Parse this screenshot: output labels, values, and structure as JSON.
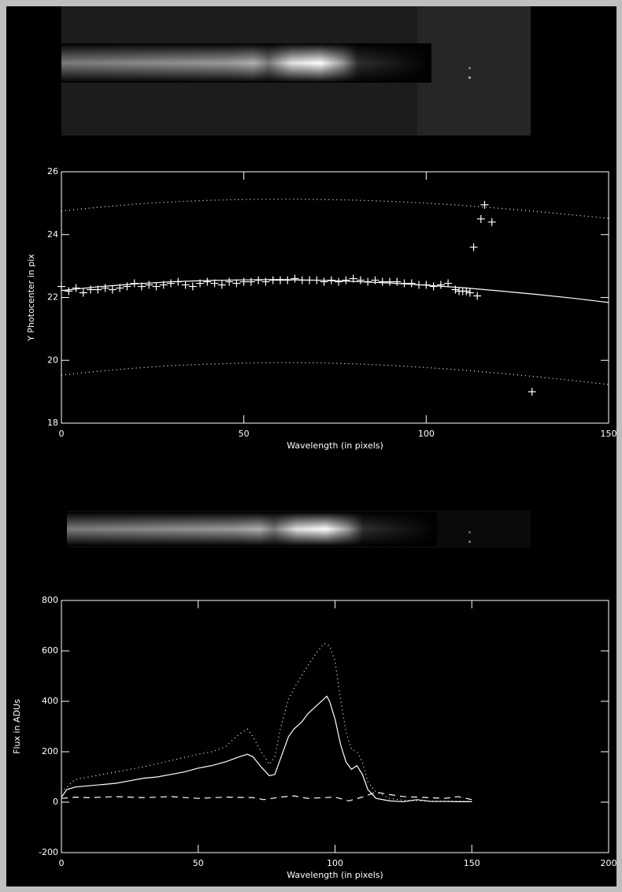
{
  "chart_data": [
    {
      "type": "scatter",
      "ylabel": "Y Photocenter in pix",
      "xlabel": "Wavelength (in pixels)",
      "xlim": [
        0,
        150
      ],
      "ylim": [
        18,
        26
      ],
      "xticks": [
        0,
        50,
        100,
        150
      ],
      "yticks": [
        18,
        20,
        22,
        24,
        26
      ],
      "series": [
        {
          "style": "plus",
          "color": "#ffffff",
          "x": [
            0,
            2,
            4,
            6,
            8,
            10,
            12,
            14,
            16,
            18,
            20,
            22,
            24,
            26,
            28,
            30,
            32,
            34,
            36,
            38,
            40,
            42,
            44,
            46,
            48,
            50,
            52,
            54,
            56,
            58,
            60,
            62,
            64,
            66,
            68,
            70,
            72,
            74,
            76,
            78,
            80,
            82,
            84,
            86,
            88,
            90,
            92,
            94,
            96,
            98,
            100,
            102,
            104,
            106,
            108,
            109,
            110,
            111,
            112,
            113,
            114,
            115,
            116,
            118,
            129
          ],
          "values": [
            22.35,
            22.2,
            22.3,
            22.15,
            22.25,
            22.25,
            22.3,
            22.25,
            22.3,
            22.35,
            22.45,
            22.35,
            22.4,
            22.35,
            22.4,
            22.45,
            22.5,
            22.4,
            22.35,
            22.45,
            22.5,
            22.45,
            22.4,
            22.5,
            22.45,
            22.5,
            22.5,
            22.55,
            22.5,
            22.55,
            22.55,
            22.55,
            22.6,
            22.55,
            22.55,
            22.55,
            22.5,
            22.55,
            22.5,
            22.55,
            22.6,
            22.55,
            22.5,
            22.55,
            22.5,
            22.5,
            22.5,
            22.45,
            22.45,
            22.4,
            22.4,
            22.35,
            22.4,
            22.45,
            22.25,
            22.2,
            22.2,
            22.2,
            22.15,
            23.6,
            22.05,
            24.5,
            24.95,
            24.4,
            19.0
          ]
        },
        {
          "style": "solid",
          "color": "#ffffff",
          "x": [
            0,
            10,
            20,
            30,
            40,
            50,
            60,
            70,
            80,
            90,
            100,
            110,
            120,
            130,
            140,
            150
          ],
          "values": [
            22.22,
            22.34,
            22.43,
            22.5,
            22.54,
            22.56,
            22.57,
            22.55,
            22.51,
            22.46,
            22.39,
            22.31,
            22.21,
            22.1,
            21.98,
            21.84
          ]
        },
        {
          "style": "dotted",
          "color": "#ffffff",
          "x": [
            0,
            10,
            20,
            30,
            40,
            50,
            60,
            70,
            80,
            90,
            100,
            110,
            120,
            130,
            140,
            150
          ],
          "values": [
            24.75,
            24.87,
            24.97,
            25.04,
            25.09,
            25.12,
            25.13,
            25.12,
            25.1,
            25.06,
            25.0,
            24.93,
            24.84,
            24.74,
            24.63,
            24.52
          ]
        },
        {
          "style": "dotted",
          "color": "#ffffff",
          "x": [
            0,
            10,
            20,
            30,
            40,
            50,
            60,
            70,
            80,
            90,
            100,
            110,
            120,
            130,
            140,
            150
          ],
          "values": [
            19.53,
            19.65,
            19.75,
            19.83,
            19.88,
            19.91,
            19.93,
            19.92,
            19.89,
            19.84,
            19.77,
            19.69,
            19.59,
            19.48,
            19.36,
            19.23
          ]
        }
      ]
    },
    {
      "type": "line",
      "ylabel": "Flux in ADUs",
      "xlabel": "Wavelength (in pixels)",
      "xlim": [
        0,
        200
      ],
      "ylim": [
        -200,
        800
      ],
      "xticks": [
        0,
        50,
        100,
        150,
        200
      ],
      "yticks": [
        -200,
        0,
        200,
        400,
        600,
        800
      ],
      "series": [
        {
          "style": "solid",
          "color": "#ffffff",
          "x": [
            0,
            2,
            5,
            10,
            15,
            20,
            25,
            30,
            35,
            40,
            45,
            50,
            55,
            60,
            65,
            68,
            70,
            73,
            76,
            78,
            80,
            83,
            85,
            88,
            90,
            93,
            96,
            97,
            98,
            100,
            102,
            104,
            106,
            108,
            110,
            112,
            115,
            120,
            125,
            130,
            135,
            140,
            145,
            150
          ],
          "values": [
            20,
            50,
            60,
            65,
            70,
            75,
            85,
            95,
            100,
            110,
            120,
            135,
            145,
            160,
            180,
            190,
            180,
            140,
            105,
            110,
            170,
            260,
            290,
            320,
            350,
            380,
            410,
            420,
            400,
            330,
            230,
            160,
            130,
            145,
            110,
            50,
            15,
            5,
            2,
            10,
            3,
            3,
            2,
            2
          ]
        },
        {
          "style": "dotted",
          "color": "#ffffff",
          "x": [
            0,
            5,
            10,
            20,
            30,
            40,
            50,
            55,
            60,
            65,
            68,
            70,
            73,
            76,
            78,
            80,
            83,
            86,
            90,
            93,
            96,
            98,
            100,
            102,
            104,
            106,
            108,
            110,
            112,
            115,
            120,
            125,
            130,
            140,
            150
          ],
          "values": [
            40,
            90,
            100,
            120,
            140,
            165,
            190,
            200,
            220,
            270,
            290,
            260,
            200,
            150,
            180,
            290,
            410,
            470,
            540,
            590,
            630,
            620,
            560,
            410,
            280,
            210,
            200,
            160,
            80,
            40,
            15,
            8,
            5,
            4,
            3
          ]
        },
        {
          "style": "dashed",
          "color": "#ffffff",
          "x": [
            0,
            5,
            10,
            20,
            30,
            40,
            50,
            60,
            70,
            74,
            80,
            85,
            90,
            100,
            105,
            110,
            115,
            120,
            125,
            130,
            140,
            145,
            150
          ],
          "values": [
            15,
            20,
            18,
            22,
            18,
            22,
            15,
            20,
            18,
            10,
            20,
            25,
            15,
            20,
            5,
            20,
            40,
            30,
            22,
            20,
            15,
            22,
            10
          ]
        }
      ]
    }
  ]
}
